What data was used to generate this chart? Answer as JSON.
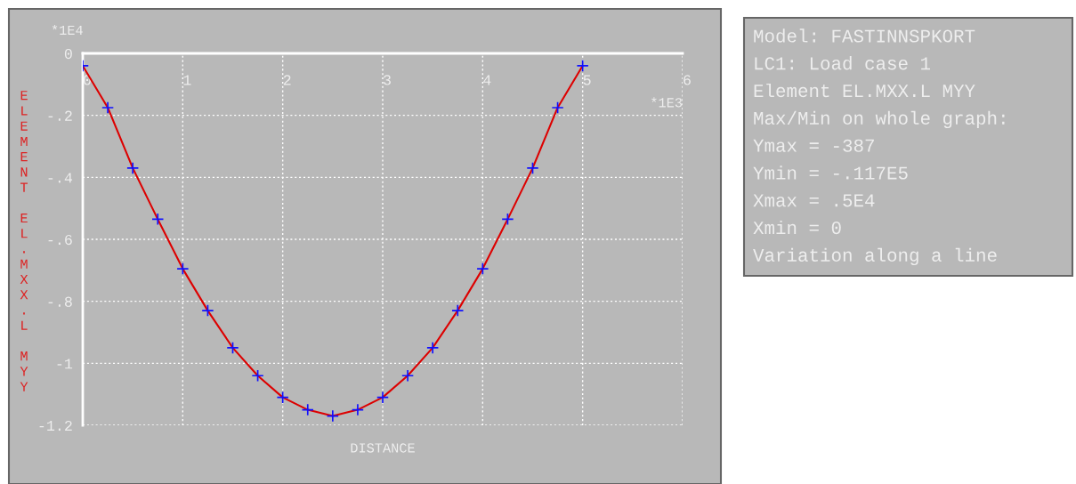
{
  "chart_data": {
    "type": "line",
    "xlabel": "DISTANCE",
    "ylabel": "ELEMENT EL.MXX.L MYY",
    "x": [
      0,
      0.25,
      0.5,
      0.75,
      1,
      1.25,
      1.5,
      1.75,
      2,
      2.25,
      2.5,
      2.75,
      3,
      3.25,
      3.5,
      3.75,
      4,
      4.25,
      4.5,
      4.75,
      5
    ],
    "series": [
      {
        "color": "#dd0000",
        "values": [
          -0.04,
          -0.175,
          -0.37,
          -0.535,
          -0.695,
          -0.83,
          -0.95,
          -1.04,
          -1.11,
          -1.15,
          -1.17,
          -1.15,
          -1.11,
          -1.04,
          -0.95,
          -0.83,
          -0.695,
          -0.535,
          -0.37,
          -0.175,
          -0.04
        ]
      }
    ],
    "xlim": [
      0,
      6
    ],
    "xticks": [
      0,
      1,
      2,
      3,
      4,
      5,
      6
    ],
    "ylim": [
      -1.2,
      0
    ],
    "yticks": [
      {
        "value": 0,
        "label": "0"
      },
      {
        "value": -0.2,
        "label": "-.2"
      },
      {
        "value": -0.4,
        "label": "-.4"
      },
      {
        "value": -0.6,
        "label": "-.6"
      },
      {
        "value": -0.8,
        "label": "-.8"
      },
      {
        "value": -1,
        "label": "-1"
      },
      {
        "value": -1.2,
        "label": "-1.2"
      }
    ],
    "grid": true,
    "marker": "cross",
    "line_style": "solid",
    "legend": false,
    "annotations": [
      "*1E4",
      "*1E3",
      "Model: FASTINNSPKORT",
      "LC1: Load case 1",
      "Element EL.MXX.L MYY",
      "Max/Min on whole graph:",
      "Ymax = -387",
      "Ymin = -.117E5",
      "Xmax = .5E4",
      "Xmin = 0",
      "Variation along a line"
    ]
  }
}
